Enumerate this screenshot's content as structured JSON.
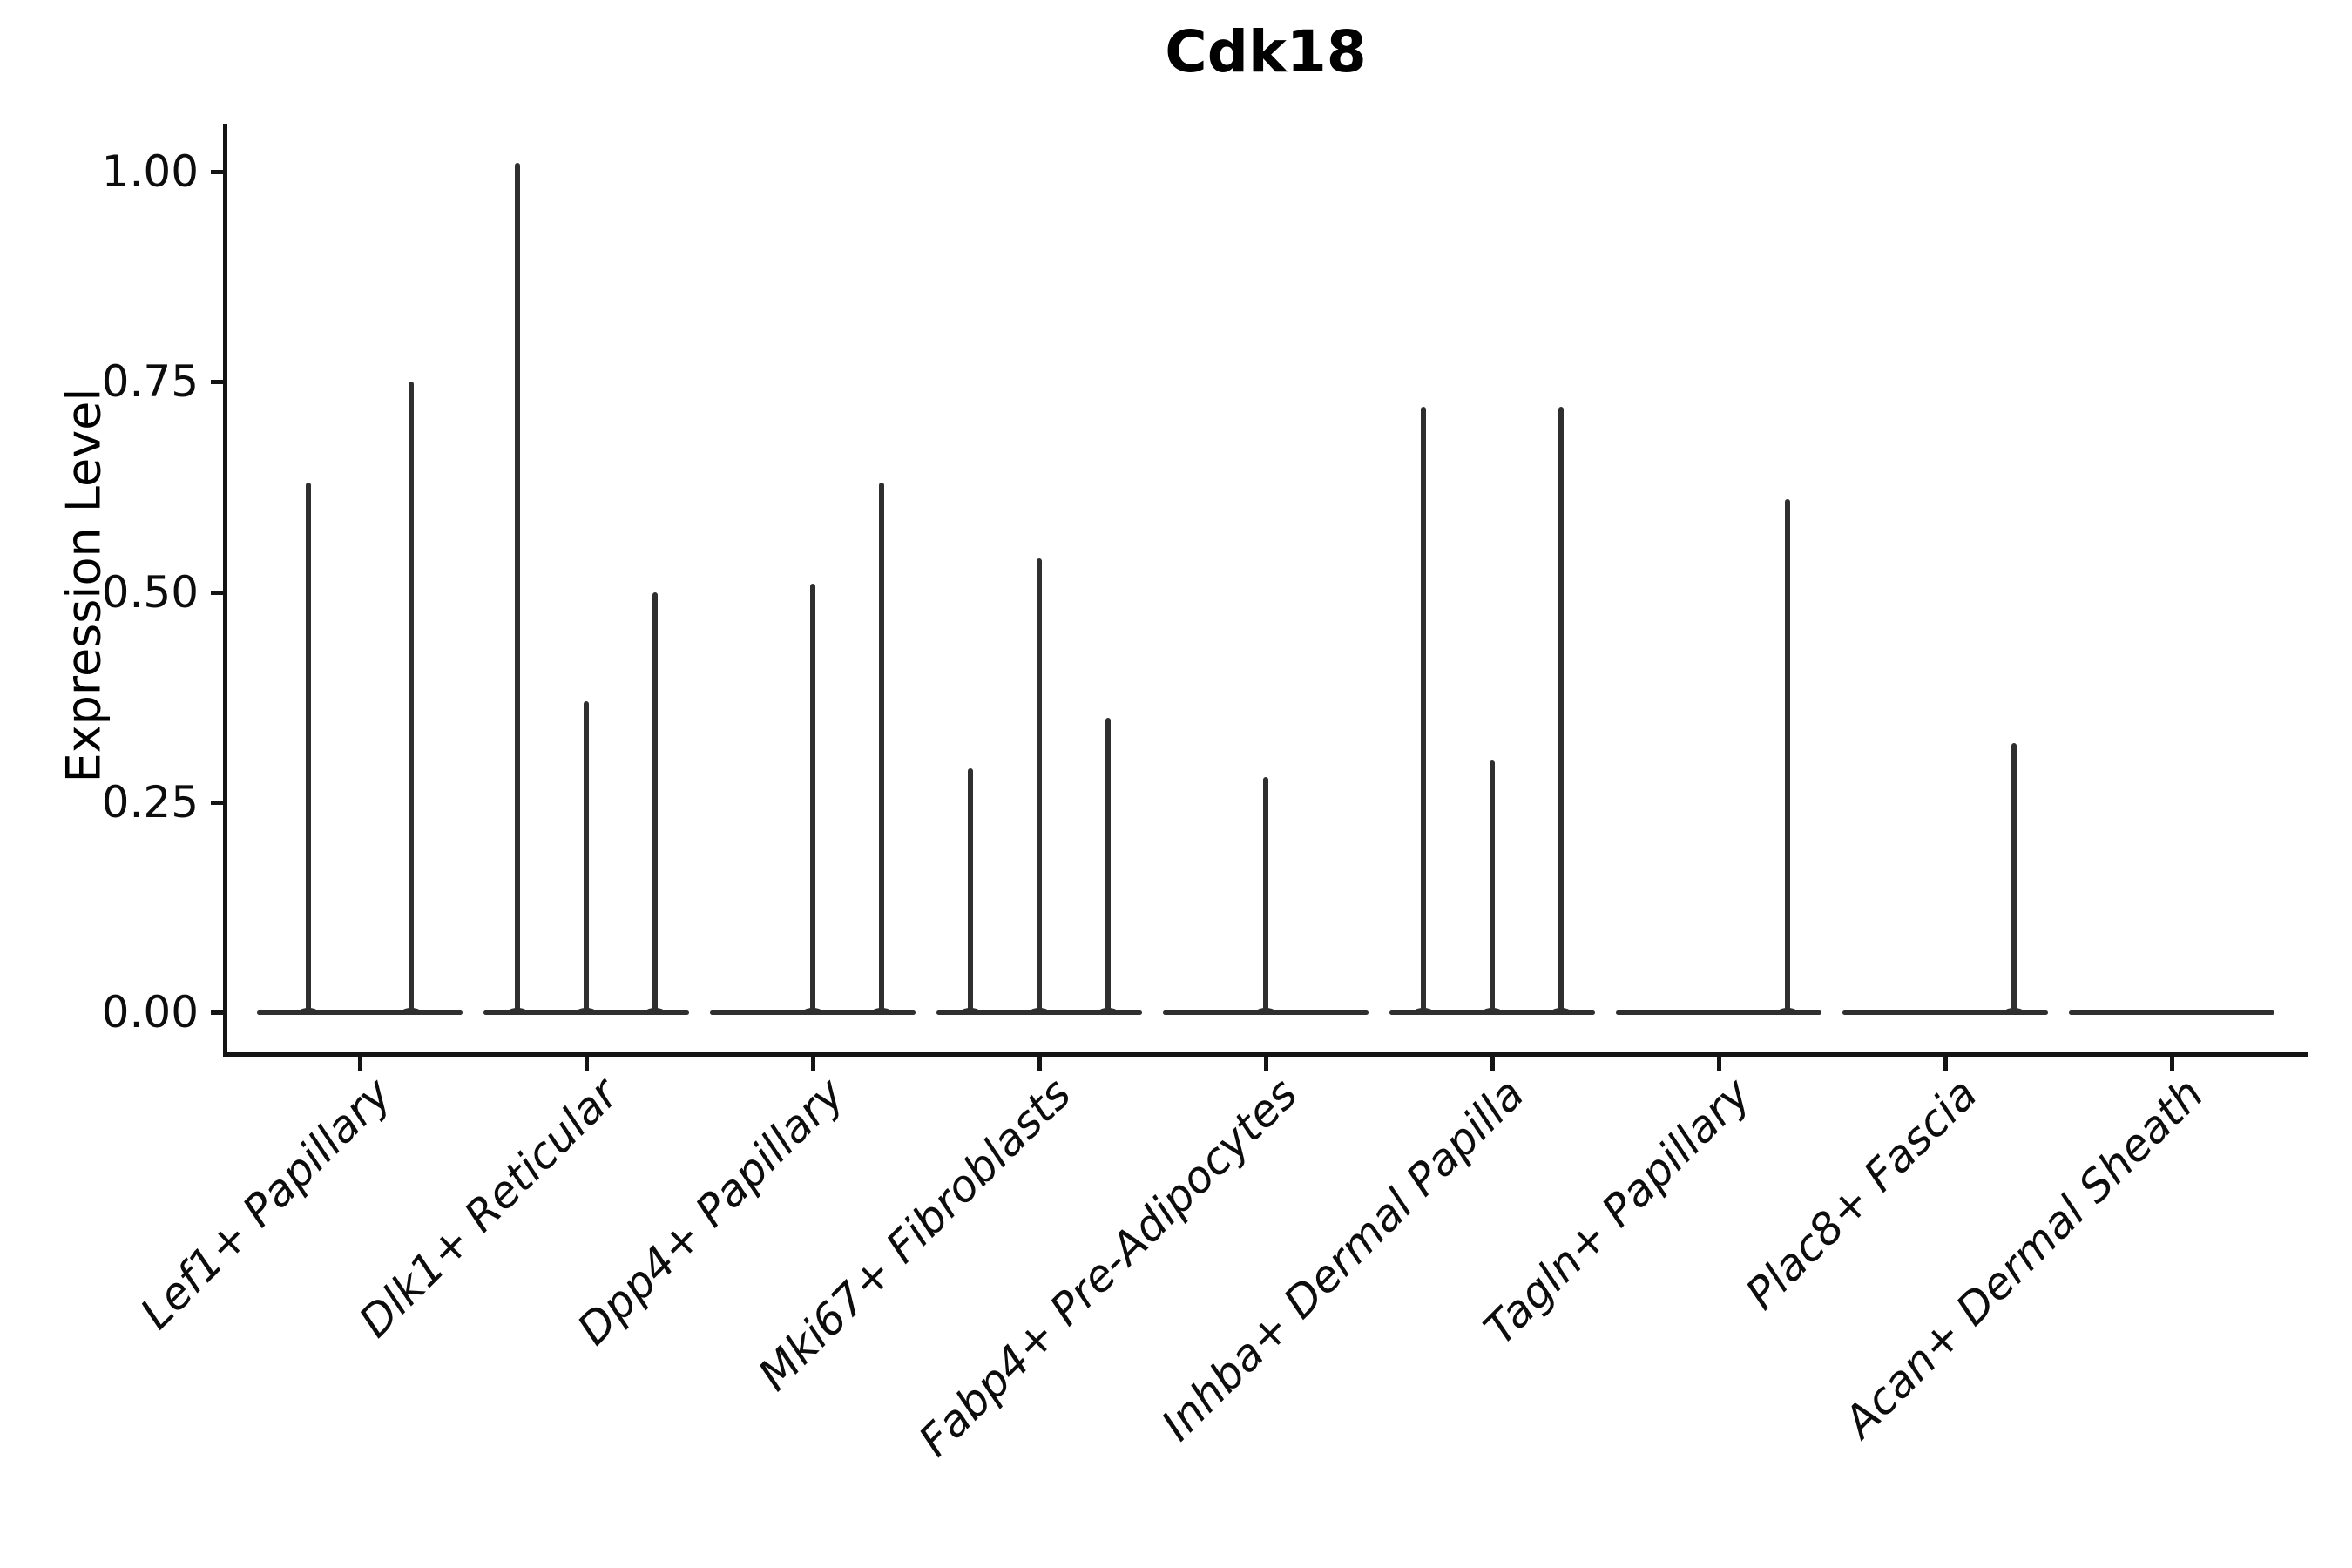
{
  "chart_data": {
    "type": "violin",
    "title": "Cdk18",
    "ylabel": "Expression Level",
    "xlabel": "",
    "ylim": [
      0,
      1.05
    ],
    "y_ticks": [
      0.0,
      0.25,
      0.5,
      0.75,
      1.0
    ],
    "y_tick_labels": [
      "0.00",
      "0.25",
      "0.50",
      "0.75",
      "1.00"
    ],
    "grid": false,
    "legend_position": "none",
    "background_color": "#ffffff",
    "line_color": "#2f2f2f",
    "axis_color": "#141414",
    "x_label_style": "italic, rotated 45deg",
    "categories": [
      {
        "label": "Lef1+ Papillary",
        "spikes": [
          {
            "x_offset": -0.5,
            "value": 0.63
          },
          {
            "x_offset": 0.5,
            "value": 0.75
          }
        ]
      },
      {
        "label": "Dlk1+ Reticular",
        "spikes": [
          {
            "x_offset": -0.67,
            "value": 1.01
          },
          {
            "x_offset": 0.0,
            "value": 0.37
          },
          {
            "x_offset": 0.67,
            "value": 0.5
          }
        ]
      },
      {
        "label": "Dpp4+ Papillary",
        "spikes": [
          {
            "x_offset": 0.0,
            "value": 0.51
          },
          {
            "x_offset": 0.67,
            "value": 0.63
          }
        ]
      },
      {
        "label": "Mki67+ Fibroblasts",
        "spikes": [
          {
            "x_offset": -0.67,
            "value": 0.29
          },
          {
            "x_offset": 0.0,
            "value": 0.54
          },
          {
            "x_offset": 0.67,
            "value": 0.35
          }
        ]
      },
      {
        "label": "Fabp4+ Pre-Adipocytes",
        "spikes": [
          {
            "x_offset": 0.0,
            "value": 0.28
          }
        ]
      },
      {
        "label": "Inhba+ Dermal Papilla",
        "spikes": [
          {
            "x_offset": -0.67,
            "value": 0.72
          },
          {
            "x_offset": 0.0,
            "value": 0.3
          },
          {
            "x_offset": 0.67,
            "value": 0.72
          }
        ]
      },
      {
        "label": "Tagln+ Papillary",
        "spikes": [
          {
            "x_offset": 0.67,
            "value": 0.61
          }
        ]
      },
      {
        "label": "Plac8+ Fascia",
        "spikes": [
          {
            "x_offset": 0.67,
            "value": 0.32
          }
        ]
      },
      {
        "label": "Acan+ Dermal Sheath",
        "spikes": []
      }
    ]
  }
}
